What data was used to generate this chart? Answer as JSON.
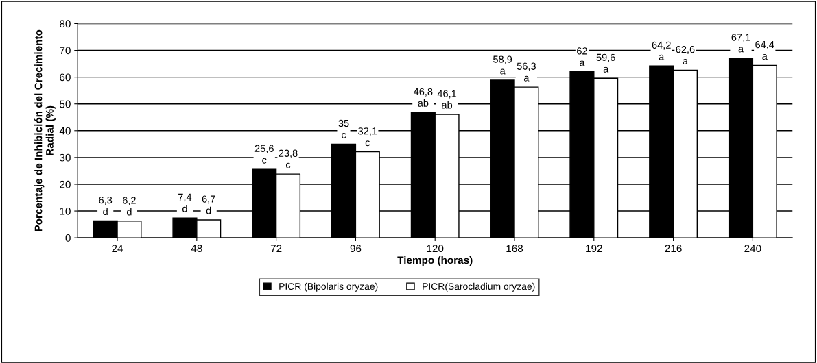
{
  "chart_data": {
    "type": "bar",
    "xlabel": "Tiempo (horas)",
    "ylabel": "Porcentaje de Inhibición del Crecimiento\nRadial (%)",
    "categories": [
      "24",
      "48",
      "72",
      "96",
      "120",
      "168",
      "192",
      "216",
      "240"
    ],
    "series": [
      {
        "name": "PICR (Bipolaris oryzae)",
        "color": "#000000",
        "values": [
          6.3,
          7.4,
          25.6,
          35,
          46.8,
          58.9,
          62,
          64.2,
          67.1
        ],
        "value_labels": [
          "6,3\nd",
          "7,4\nd",
          "25,6\nc",
          "35\nc",
          "46,8\nab",
          "58,9\na",
          "62\na",
          "64,2\na",
          "67,1\na"
        ]
      },
      {
        "name": "PICR(Sarocladium oryzae)",
        "color": "#ffffff",
        "values": [
          6.2,
          6.7,
          23.8,
          32.1,
          46.1,
          56.3,
          59.6,
          62.6,
          64.4
        ],
        "value_labels": [
          "6,2\nd",
          "6,7\nd",
          "23,8\nc",
          "32,1\nc",
          "46,1\nab",
          "56,3\na",
          "59,6\na",
          "62,6\na",
          "64,4\na"
        ]
      }
    ],
    "ylim": [
      0,
      80
    ],
    "yticks": [
      0,
      10,
      20,
      30,
      40,
      50,
      60,
      70,
      80
    ],
    "grid": "y",
    "legend": "bottom"
  }
}
